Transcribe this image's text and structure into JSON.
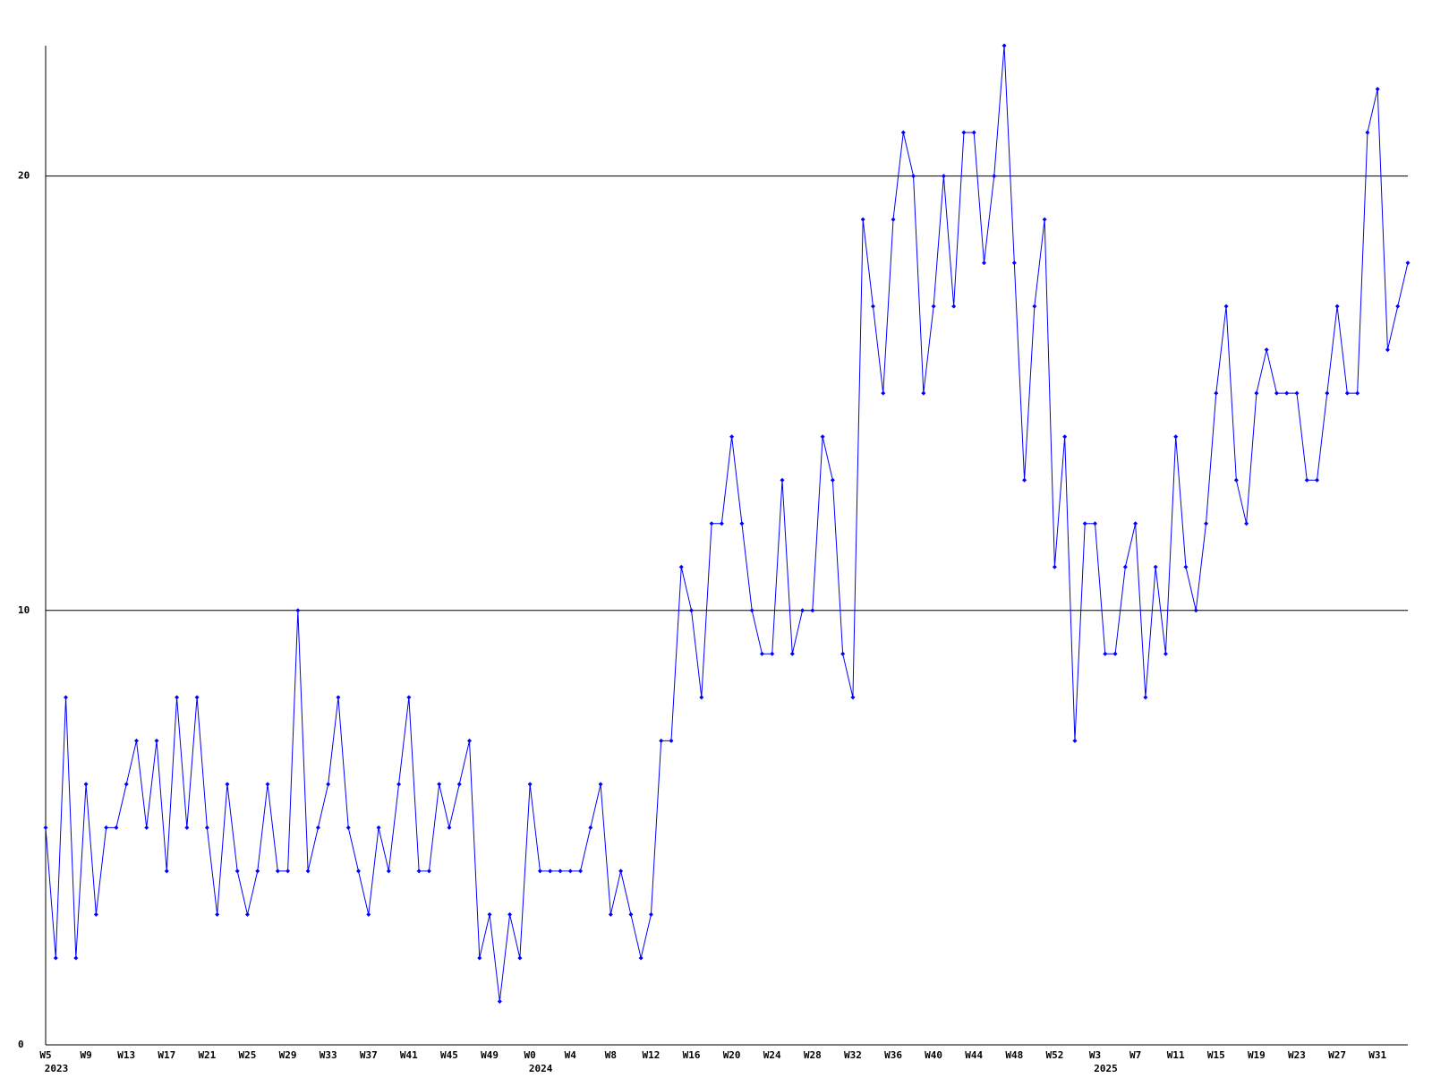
{
  "chart_data": {
    "type": "line",
    "color": "#0000ff",
    "grid": true,
    "categories": [
      "W5",
      null,
      null,
      null,
      "W9",
      null,
      null,
      null,
      "W13",
      null,
      null,
      null,
      "W17",
      null,
      null,
      null,
      "W21",
      null,
      null,
      null,
      "W25",
      null,
      null,
      null,
      "W29",
      null,
      null,
      null,
      "W33",
      null,
      null,
      null,
      "W37",
      null,
      null,
      null,
      "W41",
      null,
      null,
      null,
      "W45",
      null,
      null,
      null,
      "W49",
      null,
      null,
      null,
      "W0",
      null,
      null,
      null,
      "W4",
      null,
      null,
      null,
      "W8",
      null,
      null,
      null,
      "W12",
      null,
      null,
      null,
      "W16",
      null,
      null,
      null,
      "W20",
      null,
      null,
      null,
      "W24",
      null,
      null,
      null,
      "W28",
      null,
      null,
      null,
      "W32",
      null,
      null,
      null,
      "W36",
      null,
      null,
      null,
      "W40",
      null,
      null,
      null,
      "W44",
      null,
      null,
      null,
      "W48",
      null,
      null,
      null,
      "W52",
      null,
      null,
      null,
      "W3",
      null,
      null,
      null,
      "W7",
      null,
      null,
      null,
      "W11",
      null,
      null,
      null,
      "W15",
      null,
      null,
      null,
      "W19",
      null,
      null,
      null,
      "W23",
      null,
      null,
      null,
      "W27",
      null,
      null,
      null,
      "W31",
      null,
      null,
      null
    ],
    "category_years": [
      "2023",
      null,
      null,
      null,
      null,
      null,
      null,
      null,
      null,
      null,
      null,
      null,
      null,
      null,
      null,
      null,
      null,
      null,
      null,
      null,
      null,
      null,
      null,
      null,
      null,
      null,
      null,
      null,
      null,
      null,
      null,
      null,
      null,
      null,
      null,
      null,
      null,
      null,
      null,
      null,
      null,
      null,
      null,
      null,
      null,
      null,
      null,
      null,
      "2024",
      null,
      null,
      null,
      null,
      null,
      null,
      null,
      null,
      null,
      null,
      null,
      null,
      null,
      null,
      null,
      null,
      null,
      null,
      null,
      null,
      null,
      null,
      null,
      null,
      null,
      null,
      null,
      null,
      null,
      null,
      null,
      null,
      null,
      null,
      null,
      null,
      null,
      null,
      null,
      null,
      null,
      null,
      null,
      null,
      null,
      null,
      null,
      null,
      null,
      null,
      null,
      null,
      null,
      null,
      null,
      "2025",
      null,
      null,
      null,
      null,
      null,
      null,
      null,
      null,
      null,
      null,
      null,
      null,
      null,
      null,
      null,
      null,
      null,
      null,
      null,
      null,
      null,
      null,
      null,
      null,
      null,
      null,
      null,
      null,
      null,
      null,
      null
    ],
    "values": [
      5,
      2,
      8,
      2,
      6,
      3,
      5,
      5,
      6,
      7,
      5,
      7,
      4,
      8,
      5,
      8,
      5,
      3,
      6,
      4,
      3,
      4,
      6,
      4,
      4,
      10,
      4,
      5,
      6,
      8,
      5,
      4,
      3,
      5,
      4,
      6,
      8,
      4,
      4,
      6,
      5,
      6,
      7,
      2,
      3,
      1,
      3,
      2,
      6,
      4,
      4,
      4,
      4,
      4,
      5,
      6,
      3,
      4,
      3,
      2,
      3,
      7,
      7,
      11,
      10,
      8,
      12,
      12,
      14,
      12,
      10,
      9,
      9,
      13,
      9,
      10,
      10,
      14,
      13,
      9,
      8,
      19,
      17,
      15,
      19,
      21,
      20,
      15,
      17,
      20,
      17,
      21,
      21,
      18,
      20,
      23,
      18,
      13,
      17,
      19,
      11,
      14,
      7,
      12,
      12,
      9,
      9,
      11,
      12,
      8,
      11,
      9,
      14,
      11,
      10,
      12,
      15,
      17,
      13,
      12,
      15,
      16,
      15,
      15,
      15,
      13,
      13,
      15,
      17,
      15,
      15,
      21,
      22,
      16,
      17,
      18
    ],
    "ylim": [
      0,
      23
    ],
    "yticks": [
      0,
      10,
      20
    ]
  }
}
